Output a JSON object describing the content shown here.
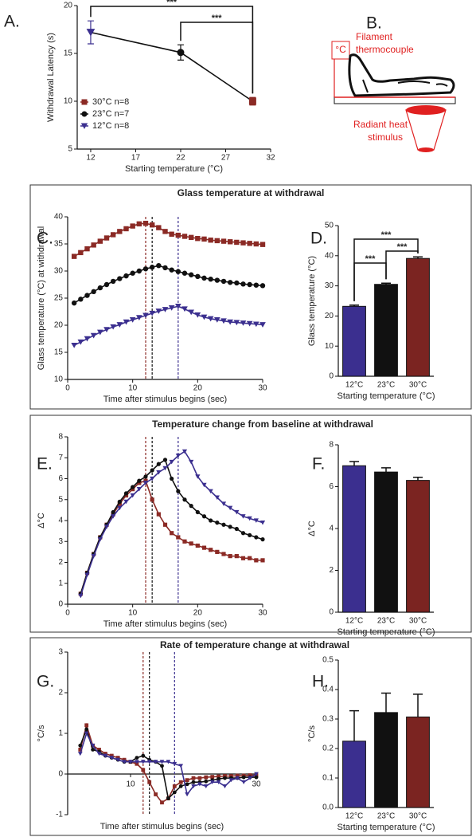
{
  "sections": [
    "Glass temperature at withdrawal",
    "Temperature change from baseline at withdrawal",
    "Rate of temperature change at withdrawal"
  ],
  "diagram": {
    "panel_label": "B.",
    "unit_box": "°C",
    "thermocouple_label": [
      "Filament",
      "thermocouple"
    ],
    "stimulus_label": [
      "Radiant heat",
      "stimulus"
    ]
  },
  "chart_data": [
    {
      "type": "line",
      "panel_label": "A.",
      "xlabel": "Starting temperature (°C)",
      "ylabel": "Withdrawal Latency (s)",
      "xlim": [
        10.5,
        32
      ],
      "xticks": [
        12,
        17,
        22,
        27,
        32
      ],
      "ylim": [
        5,
        20
      ],
      "yticks": [
        5,
        10,
        15,
        20
      ],
      "legend": "lower left",
      "connect": true,
      "series": [
        {
          "name": "30°C n=8",
          "color": "#8b2a25",
          "marker": "square",
          "x": [
            30
          ],
          "values": [
            10.0
          ],
          "errors": [
            0.4
          ]
        },
        {
          "name": "23°C n=7",
          "color": "#111111",
          "marker": "circle",
          "x": [
            22
          ],
          "values": [
            15.1
          ],
          "errors": [
            0.8
          ]
        },
        {
          "name": "12°C n=8",
          "color": "#3b2f8f",
          "marker": "triangle-down",
          "x": [
            12
          ],
          "values": [
            17.2
          ],
          "errors": [
            1.2
          ]
        }
      ],
      "comparisons": [
        {
          "between": [
            12,
            30
          ],
          "label": "***"
        },
        {
          "between": [
            22,
            30
          ],
          "label": "***"
        }
      ]
    },
    {
      "type": "line",
      "panel_label": "C.",
      "xlabel": "Time after stimulus begins (sec)",
      "ylabel": "Glass temperature (°C) at withdrawal",
      "xlim": [
        0,
        30
      ],
      "xticks": [
        0,
        10,
        20,
        30
      ],
      "ylim": [
        10,
        40
      ],
      "yticks": [
        10,
        15,
        20,
        25,
        30,
        35,
        40
      ],
      "x": [
        1,
        2,
        3,
        4,
        5,
        6,
        7,
        8,
        9,
        10,
        11,
        12,
        13,
        14,
        15,
        16,
        17,
        18,
        19,
        20,
        21,
        22,
        23,
        24,
        25,
        26,
        27,
        28,
        29,
        30
      ],
      "vlines": [
        {
          "x": 12,
          "color": "#8b2a25"
        },
        {
          "x": 13,
          "color": "#111111"
        },
        {
          "x": 17,
          "color": "#3b2f8f"
        }
      ],
      "series": [
        {
          "color": "#8b2a25",
          "marker": "square",
          "values": [
            32.7,
            33.4,
            34.1,
            34.8,
            35.5,
            36.1,
            36.7,
            37.3,
            37.8,
            38.3,
            38.7,
            38.8,
            38.5,
            38.0,
            37.3,
            36.8,
            36.6,
            36.4,
            36.2,
            36.0,
            35.9,
            35.7,
            35.6,
            35.5,
            35.4,
            35.3,
            35.2,
            35.1,
            35.0,
            34.9
          ]
        },
        {
          "color": "#111111",
          "marker": "circle",
          "values": [
            24.1,
            24.8,
            25.5,
            26.2,
            26.9,
            27.5,
            28.1,
            28.6,
            29.1,
            29.6,
            30.0,
            30.4,
            30.7,
            31.0,
            30.6,
            30.2,
            29.9,
            29.6,
            29.3,
            29.0,
            28.7,
            28.5,
            28.3,
            28.1,
            27.9,
            27.8,
            27.6,
            27.5,
            27.4,
            27.3
          ]
        },
        {
          "color": "#3b2f8f",
          "marker": "triangle-down",
          "values": [
            16.3,
            16.9,
            17.5,
            18.1,
            18.7,
            19.2,
            19.7,
            20.1,
            20.6,
            21.0,
            21.4,
            21.8,
            22.2,
            22.6,
            22.9,
            23.2,
            23.5,
            23.0,
            22.4,
            21.9,
            21.5,
            21.2,
            21.0,
            20.8,
            20.6,
            20.5,
            20.4,
            20.3,
            20.2,
            20.1
          ]
        }
      ]
    },
    {
      "type": "bar",
      "panel_label": "D.",
      "xlabel": "Starting temperature (°C)",
      "ylabel": "Glass temperature (°C)",
      "categories": [
        "12°C",
        "23°C",
        "30°C"
      ],
      "values": [
        23.2,
        30.5,
        39.1
      ],
      "errors": [
        0.4,
        0.4,
        0.5
      ],
      "colors": [
        "#3b2f8f",
        "#111111",
        "#7b2421"
      ],
      "ylim": [
        0,
        50
      ],
      "yticks": [
        0,
        10,
        20,
        30,
        40,
        50
      ],
      "comparisons": [
        {
          "between": [
            0,
            2
          ],
          "label": "***"
        },
        {
          "between": [
            1,
            2
          ],
          "label": "***"
        },
        {
          "between": [
            0,
            1
          ],
          "label": "***"
        }
      ]
    },
    {
      "type": "line",
      "panel_label": "E.",
      "xlabel": "Time after stimulus begins (sec)",
      "ylabel": "Δ°C",
      "xlim": [
        0,
        30
      ],
      "xticks": [
        0,
        10,
        20,
        30
      ],
      "ylim": [
        0,
        8
      ],
      "yticks": [
        0,
        1,
        2,
        3,
        4,
        5,
        6,
        7,
        8
      ],
      "x": [
        2,
        3,
        4,
        5,
        6,
        7,
        8,
        9,
        10,
        11,
        12,
        13,
        14,
        15,
        16,
        17,
        18,
        19,
        20,
        21,
        22,
        23,
        24,
        25,
        26,
        27,
        28,
        29,
        30
      ],
      "vlines": [
        {
          "x": 12,
          "color": "#8b2a25"
        },
        {
          "x": 13,
          "color": "#111111"
        },
        {
          "x": 17,
          "color": "#3b2f8f"
        }
      ],
      "series": [
        {
          "color": "#8b2a25",
          "marker": "square",
          "values": [
            0.5,
            1.5,
            2.4,
            3.2,
            3.8,
            4.3,
            4.8,
            5.2,
            5.5,
            5.8,
            5.9,
            5.0,
            4.3,
            3.8,
            3.4,
            3.2,
            3.0,
            2.9,
            2.8,
            2.7,
            2.6,
            2.5,
            2.4,
            2.3,
            2.3,
            2.2,
            2.2,
            2.1,
            2.1
          ]
        },
        {
          "color": "#111111",
          "marker": "circle",
          "values": [
            0.5,
            1.5,
            2.4,
            3.2,
            3.8,
            4.4,
            4.9,
            5.3,
            5.6,
            5.9,
            6.1,
            6.4,
            6.7,
            6.9,
            6.0,
            5.4,
            5.0,
            4.7,
            4.4,
            4.2,
            4.0,
            3.9,
            3.8,
            3.7,
            3.6,
            3.4,
            3.3,
            3.2,
            3.1
          ]
        },
        {
          "color": "#3b2f8f",
          "marker": "triangle-down",
          "values": [
            0.4,
            1.4,
            2.3,
            3.1,
            3.7,
            4.2,
            4.6,
            4.9,
            5.2,
            5.5,
            5.8,
            6.0,
            6.3,
            6.5,
            6.8,
            7.1,
            7.3,
            6.8,
            6.1,
            5.7,
            5.4,
            5.1,
            4.8,
            4.6,
            4.4,
            4.2,
            4.1,
            4.0,
            3.9
          ]
        }
      ]
    },
    {
      "type": "bar",
      "panel_label": "F.",
      "xlabel": "Starting temperature (°C)",
      "ylabel": "Δ°C",
      "categories": [
        "12°C",
        "23°C",
        "30°C"
      ],
      "values": [
        7.0,
        6.7,
        6.3
      ],
      "errors": [
        0.2,
        0.2,
        0.15
      ],
      "colors": [
        "#3b2f8f",
        "#111111",
        "#7b2421"
      ],
      "ylim": [
        0,
        8
      ],
      "yticks": [
        0,
        2,
        4,
        6,
        8
      ]
    },
    {
      "type": "line",
      "panel_label": "G.",
      "xlabel": "Time after stimulus begins (sec)",
      "ylabel": "°C/s",
      "x_axis_at_zero": true,
      "xlim": [
        0,
        30
      ],
      "xticks": [
        10,
        30
      ],
      "ylim": [
        -1,
        3
      ],
      "yticks": [
        -1,
        0,
        1,
        2,
        3
      ],
      "x": [
        2,
        3,
        4,
        5,
        6,
        7,
        8,
        9,
        10,
        11,
        12,
        13,
        14,
        15,
        16,
        17,
        18,
        19,
        20,
        21,
        22,
        23,
        24,
        25,
        26,
        27,
        28,
        29,
        30
      ],
      "vlines": [
        {
          "x": 12,
          "color": "#8b2a25"
        },
        {
          "x": 13,
          "color": "#111111"
        },
        {
          "x": 17,
          "color": "#3b2f8f"
        }
      ],
      "series": [
        {
          "color": "#8b2a25",
          "marker": "square",
          "values": [
            0.6,
            1.2,
            0.7,
            0.6,
            0.5,
            0.45,
            0.4,
            0.35,
            0.3,
            0.25,
            0.1,
            -0.2,
            -0.5,
            -0.7,
            -0.6,
            -0.3,
            -0.2,
            -0.15,
            -0.1,
            -0.1,
            -0.08,
            -0.07,
            -0.06,
            -0.05,
            -0.05,
            -0.04,
            -0.04,
            -0.03,
            -0.03
          ]
        },
        {
          "color": "#111111",
          "marker": "circle",
          "values": [
            0.7,
            1.1,
            0.6,
            0.55,
            0.45,
            0.4,
            0.35,
            0.3,
            0.3,
            0.4,
            0.45,
            0.35,
            0.3,
            0.2,
            -0.6,
            -0.45,
            -0.3,
            -0.25,
            -0.2,
            -0.2,
            -0.18,
            -0.15,
            -0.12,
            -0.1,
            -0.1,
            -0.1,
            -0.08,
            -0.08,
            -0.08
          ]
        },
        {
          "color": "#3b2f8f",
          "marker": "triangle-down",
          "values": [
            0.5,
            1.0,
            0.7,
            0.5,
            0.45,
            0.4,
            0.35,
            0.3,
            0.3,
            0.3,
            0.3,
            0.3,
            0.3,
            0.3,
            0.3,
            0.25,
            0.2,
            -0.5,
            -0.3,
            -0.25,
            -0.3,
            -0.2,
            -0.2,
            -0.3,
            -0.15,
            -0.1,
            -0.2,
            -0.1,
            0.0
          ]
        }
      ]
    },
    {
      "type": "bar",
      "panel_label": "H.",
      "xlabel": "Starting temperature (°C)",
      "ylabel": "°C/s",
      "categories": [
        "12°C",
        "23°C",
        "30°C"
      ],
      "values": [
        0.225,
        0.322,
        0.307
      ],
      "errors": [
        0.103,
        0.066,
        0.077
      ],
      "colors": [
        "#3b2f8f",
        "#111111",
        "#7b2421"
      ],
      "ylim": [
        0,
        0.5
      ],
      "yticks": [
        {
          "value": 0,
          "label": "0.0"
        },
        0.1,
        0.2,
        0.3,
        0.4,
        0.5
      ]
    }
  ]
}
